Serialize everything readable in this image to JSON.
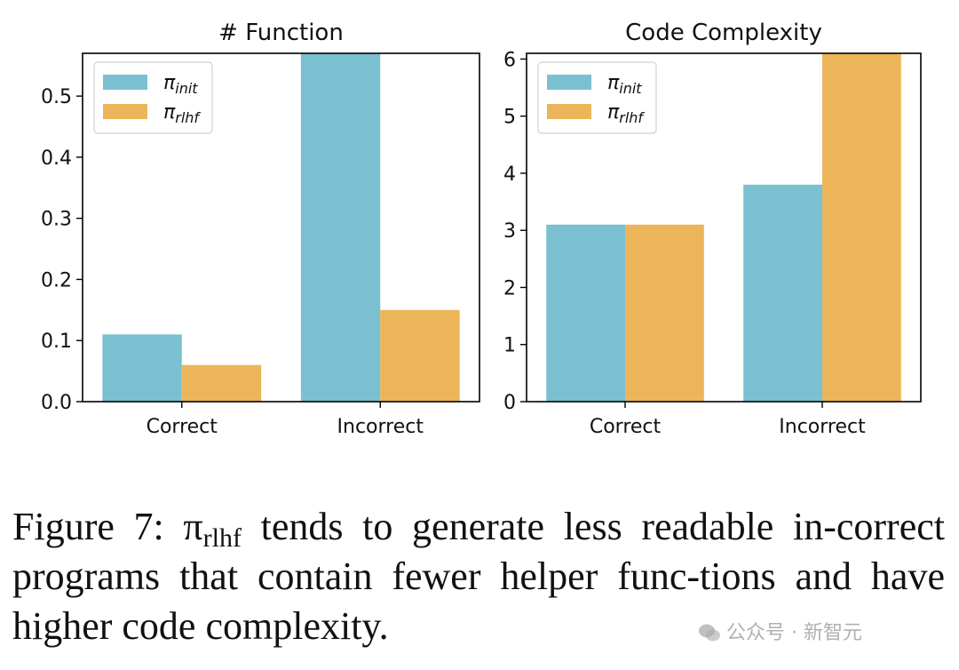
{
  "chart_data": [
    {
      "type": "bar",
      "title": "# Function",
      "categories": [
        "Correct",
        "Incorrect"
      ],
      "series": [
        {
          "name": "π_init",
          "values": [
            0.11,
            0.57
          ]
        },
        {
          "name": "π_rlhf",
          "values": [
            0.06,
            0.15
          ]
        }
      ],
      "ylim": [
        0,
        0.57
      ],
      "yticks": [
        "0.0",
        "0.1",
        "0.2",
        "0.3",
        "0.4",
        "0.5"
      ],
      "legend": "top-left",
      "grid": false
    },
    {
      "type": "bar",
      "title": "Code Complexity",
      "categories": [
        "Correct",
        "Incorrect"
      ],
      "series": [
        {
          "name": "π_init",
          "values": [
            3.1,
            3.8
          ]
        },
        {
          "name": "π_rlhf",
          "values": [
            3.1,
            6.1
          ]
        }
      ],
      "ylim": [
        0,
        6.1
      ],
      "yticks": [
        "0",
        "1",
        "2",
        "3",
        "4",
        "5",
        "6"
      ],
      "legend": "top-left",
      "grid": false
    }
  ],
  "legend_labels": {
    "pi": "π",
    "init_sub": "init",
    "rlhf_sub": "rlhf"
  },
  "colors": {
    "init": "#7bc0d1",
    "rlhf": "#ecb55a"
  },
  "caption": {
    "prefix": "Figure 7: π",
    "sub": "rlhf",
    "text": " tends to generate less readable in-correct programs that contain fewer helper func-tions and have higher code complexity."
  },
  "watermark": {
    "text": "公众号 · 新智元",
    "icon": "wechat-icon"
  }
}
